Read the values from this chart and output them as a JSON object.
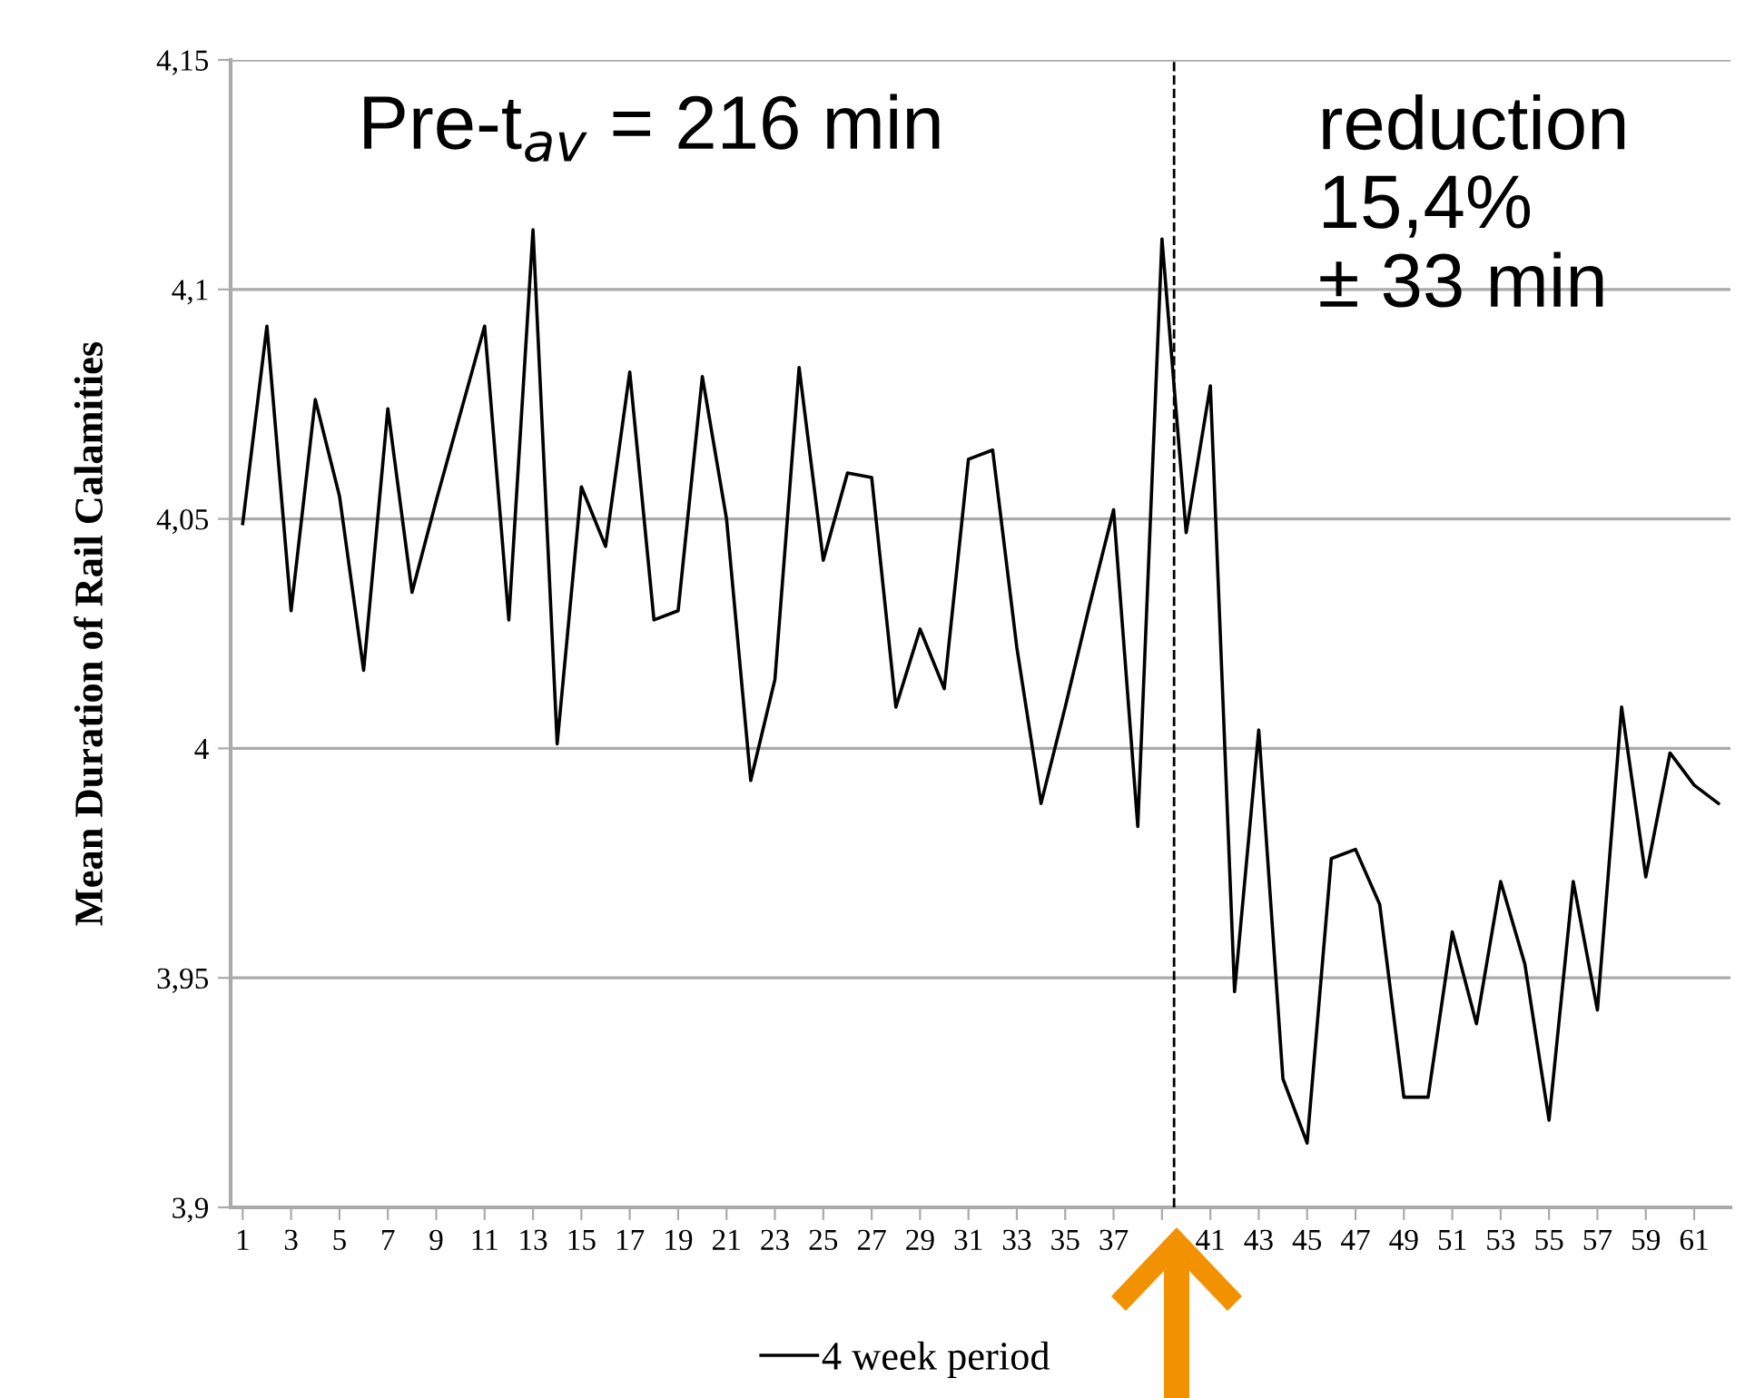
{
  "chart_data": {
    "type": "line",
    "ylabel": "Mean Duration of Rail Calamities",
    "x": [
      1,
      2,
      3,
      4,
      5,
      6,
      7,
      8,
      9,
      10,
      11,
      12,
      13,
      14,
      15,
      16,
      17,
      18,
      19,
      20,
      21,
      22,
      23,
      24,
      25,
      26,
      27,
      28,
      29,
      30,
      31,
      32,
      33,
      34,
      35,
      36,
      37,
      38,
      39,
      40,
      41,
      42,
      43,
      44,
      45,
      46,
      47,
      48,
      49,
      50,
      51,
      52,
      53,
      54,
      55,
      56,
      57,
      58,
      59,
      60,
      61,
      62
    ],
    "series": [
      {
        "name": "4 week period",
        "color": "#000000",
        "values": [
          4.049,
          4.092,
          4.03,
          4.076,
          4.055,
          4.017,
          4.074,
          4.034,
          4.054,
          4.073,
          4.092,
          4.028,
          4.113,
          4.001,
          4.057,
          4.044,
          4.082,
          4.028,
          4.03,
          4.081,
          4.05,
          3.993,
          4.015,
          4.083,
          4.041,
          4.06,
          4.059,
          4.009,
          4.026,
          4.013,
          4.063,
          4.065,
          4.022,
          3.988,
          4.009,
          4.031,
          4.052,
          3.983,
          4.111,
          4.047,
          4.079,
          3.947,
          4.004,
          3.928,
          3.914,
          3.976,
          3.978,
          3.966,
          3.924,
          3.924,
          3.96,
          3.94,
          3.971,
          3.953,
          3.919,
          3.971,
          3.943,
          4.009,
          3.972,
          3.999,
          3.992,
          3.988
        ]
      }
    ],
    "xlim": [
      0.5,
      62.5
    ],
    "xticks": [
      1,
      3,
      5,
      7,
      9,
      11,
      13,
      15,
      17,
      19,
      21,
      23,
      25,
      27,
      29,
      31,
      33,
      35,
      37,
      {
        "value": 39,
        "label": null
      },
      41,
      43,
      45,
      47,
      49,
      51,
      53,
      55,
      57,
      59,
      61
    ],
    "ylim": [
      3.9,
      4.15
    ],
    "yticks": [
      {
        "value": 3.9,
        "label": "3,9"
      },
      {
        "value": 3.95,
        "label": "3,95"
      },
      {
        "value": 4,
        "label": "4"
      },
      {
        "value": 4.05,
        "label": "4,05"
      },
      {
        "value": 4.1,
        "label": "4,1"
      },
      {
        "value": 4.15,
        "label": "4,15"
      }
    ],
    "grid": "y",
    "legend": "bottom",
    "marker": "none",
    "line_style": "solid",
    "ref_lines": [
      {
        "axis": "x",
        "value": 39.5,
        "color": "#000000",
        "line_style": "dashed"
      }
    ],
    "annotations": [
      "Pre-t$_{av}$ = 216 min",
      "reduction\n15,4%\n± 33 min"
    ]
  }
}
